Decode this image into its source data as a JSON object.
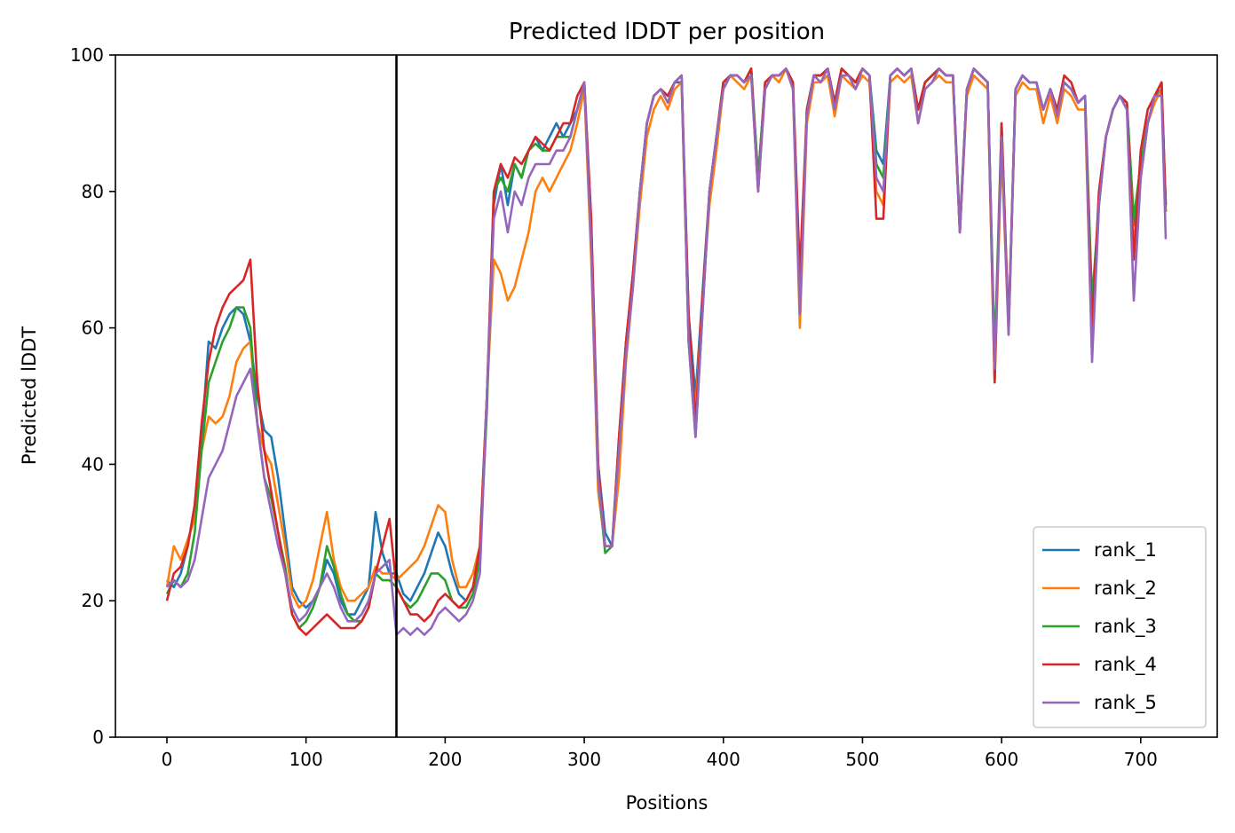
{
  "chart_data": {
    "type": "line",
    "title": "Predicted lDDT per position",
    "xlabel": "Positions",
    "ylabel": "Predicted lDDT",
    "xlim": [
      -37,
      755
    ],
    "ylim": [
      0,
      100
    ],
    "xticks": [
      0,
      100,
      200,
      300,
      400,
      500,
      600,
      700
    ],
    "yticks": [
      0,
      20,
      40,
      60,
      80,
      100
    ],
    "grid": false,
    "legend_position": "lower right",
    "vline_x": 165,
    "colors": [
      "#1f77b4",
      "#ff7f0e",
      "#2ca02c",
      "#d62728",
      "#9467bd"
    ],
    "x": [
      0,
      5,
      10,
      15,
      20,
      25,
      30,
      35,
      40,
      45,
      50,
      55,
      60,
      65,
      70,
      75,
      80,
      85,
      90,
      95,
      100,
      105,
      110,
      115,
      120,
      125,
      130,
      135,
      140,
      145,
      150,
      155,
      160,
      165,
      170,
      175,
      180,
      185,
      190,
      195,
      200,
      205,
      210,
      215,
      220,
      225,
      230,
      235,
      240,
      245,
      250,
      255,
      260,
      265,
      270,
      275,
      280,
      285,
      290,
      295,
      300,
      305,
      310,
      315,
      320,
      325,
      330,
      335,
      340,
      345,
      350,
      355,
      360,
      365,
      370,
      375,
      380,
      385,
      390,
      395,
      400,
      405,
      410,
      415,
      420,
      425,
      430,
      435,
      440,
      445,
      450,
      455,
      460,
      465,
      470,
      475,
      480,
      485,
      490,
      495,
      500,
      505,
      510,
      515,
      520,
      525,
      530,
      535,
      540,
      545,
      550,
      555,
      560,
      565,
      570,
      575,
      580,
      585,
      590,
      595,
      600,
      605,
      610,
      615,
      620,
      625,
      630,
      635,
      640,
      645,
      650,
      655,
      660,
      665,
      670,
      675,
      680,
      685,
      690,
      695,
      700,
      705,
      710,
      715,
      718
    ],
    "series": [
      {
        "name": "rank_1",
        "values": [
          23,
          22,
          24,
          28,
          34,
          44,
          58,
          57,
          60,
          62,
          63,
          62,
          58,
          50,
          45,
          44,
          38,
          30,
          22,
          20,
          19,
          20,
          22,
          26,
          24,
          20,
          18,
          18,
          20,
          22,
          33,
          27,
          24,
          24,
          21,
          20,
          22,
          24,
          27,
          30,
          28,
          24,
          21,
          20,
          22,
          26,
          50,
          78,
          84,
          78,
          84,
          82,
          86,
          88,
          86,
          88,
          90,
          88,
          90,
          92,
          96,
          75,
          40,
          30,
          28,
          42,
          56,
          66,
          80,
          90,
          94,
          95,
          94,
          96,
          96,
          62,
          50,
          65,
          80,
          88,
          95,
          97,
          97,
          96,
          98,
          82,
          96,
          97,
          97,
          98,
          96,
          62,
          92,
          97,
          97,
          98,
          93,
          98,
          97,
          96,
          98,
          97,
          86,
          84,
          97,
          98,
          97,
          98,
          92,
          96,
          97,
          98,
          97,
          97,
          74,
          95,
          98,
          97,
          96,
          55,
          88,
          60,
          95,
          97,
          96,
          96,
          92,
          95,
          92,
          96,
          95,
          93,
          94,
          58,
          80,
          88,
          92,
          94,
          93,
          75,
          82,
          90,
          94,
          95,
          78
        ]
      },
      {
        "name": "rank_2",
        "values": [
          22,
          28,
          26,
          29,
          32,
          42,
          47,
          46,
          47,
          50,
          55,
          57,
          58,
          46,
          42,
          40,
          34,
          28,
          21,
          19,
          20,
          23,
          28,
          33,
          26,
          22,
          20,
          20,
          21,
          22,
          25,
          24,
          24,
          23,
          24,
          25,
          26,
          28,
          31,
          34,
          33,
          26,
          22,
          22,
          24,
          28,
          50,
          70,
          68,
          64,
          66,
          70,
          74,
          80,
          82,
          80,
          82,
          84,
          86,
          90,
          95,
          70,
          36,
          28,
          28,
          38,
          55,
          66,
          78,
          88,
          92,
          94,
          92,
          95,
          96,
          58,
          48,
          64,
          78,
          86,
          95,
          97,
          96,
          95,
          97,
          80,
          95,
          97,
          96,
          98,
          95,
          60,
          90,
          96,
          96,
          97,
          91,
          97,
          96,
          95,
          97,
          96,
          80,
          78,
          96,
          97,
          96,
          97,
          90,
          95,
          96,
          97,
          96,
          96,
          74,
          94,
          97,
          96,
          95,
          52,
          86,
          59,
          94,
          96,
          95,
          95,
          90,
          94,
          90,
          95,
          94,
          92,
          92,
          56,
          78,
          88,
          92,
          94,
          93,
          72,
          82,
          90,
          93,
          95,
          77
        ]
      },
      {
        "name": "rank_3",
        "values": [
          21,
          23,
          22,
          24,
          30,
          42,
          52,
          55,
          58,
          60,
          63,
          63,
          60,
          46,
          38,
          35,
          30,
          25,
          18,
          16,
          17,
          19,
          22,
          28,
          25,
          21,
          18,
          17,
          17,
          19,
          24,
          23,
          23,
          22,
          20,
          19,
          20,
          22,
          24,
          24,
          23,
          20,
          19,
          19,
          21,
          26,
          48,
          80,
          82,
          80,
          84,
          82,
          86,
          87,
          86,
          86,
          88,
          88,
          88,
          92,
          96,
          74,
          38,
          27,
          28,
          44,
          58,
          68,
          80,
          90,
          94,
          95,
          94,
          96,
          97,
          58,
          44,
          62,
          80,
          88,
          96,
          97,
          97,
          96,
          98,
          82,
          96,
          97,
          97,
          98,
          96,
          64,
          92,
          97,
          97,
          98,
          93,
          98,
          97,
          96,
          98,
          97,
          84,
          82,
          97,
          98,
          97,
          98,
          92,
          96,
          97,
          98,
          97,
          97,
          75,
          95,
          98,
          97,
          96,
          56,
          90,
          60,
          95,
          97,
          96,
          96,
          92,
          95,
          92,
          96,
          95,
          93,
          94,
          64,
          78,
          88,
          92,
          94,
          93,
          76,
          84,
          90,
          94,
          96,
          77
        ]
      },
      {
        "name": "rank_4",
        "values": [
          20,
          24,
          25,
          28,
          34,
          46,
          55,
          60,
          63,
          65,
          66,
          67,
          70,
          52,
          42,
          36,
          30,
          24,
          18,
          16,
          15,
          16,
          17,
          18,
          17,
          16,
          16,
          16,
          17,
          19,
          24,
          28,
          32,
          22,
          20,
          18,
          18,
          17,
          18,
          20,
          21,
          20,
          19,
          20,
          22,
          28,
          50,
          80,
          84,
          82,
          85,
          84,
          86,
          88,
          87,
          86,
          88,
          90,
          90,
          94,
          96,
          76,
          40,
          28,
          28,
          44,
          58,
          68,
          80,
          90,
          94,
          95,
          94,
          96,
          97,
          62,
          46,
          64,
          80,
          88,
          96,
          97,
          97,
          96,
          98,
          80,
          96,
          97,
          97,
          98,
          96,
          68,
          92,
          97,
          97,
          98,
          93,
          98,
          97,
          96,
          98,
          97,
          76,
          76,
          97,
          98,
          97,
          98,
          92,
          96,
          97,
          98,
          97,
          97,
          74,
          95,
          98,
          97,
          96,
          52,
          90,
          60,
          95,
          97,
          96,
          96,
          92,
          95,
          92,
          97,
          96,
          93,
          94,
          60,
          80,
          88,
          92,
          94,
          93,
          70,
          86,
          92,
          94,
          96,
          78
        ]
      },
      {
        "name": "rank_5",
        "values": [
          22,
          23,
          22,
          23,
          26,
          32,
          38,
          40,
          42,
          46,
          50,
          52,
          54,
          46,
          38,
          33,
          28,
          24,
          19,
          17,
          18,
          20,
          22,
          24,
          22,
          19,
          17,
          17,
          18,
          20,
          24,
          25,
          26,
          15,
          16,
          15,
          16,
          15,
          16,
          18,
          19,
          18,
          17,
          18,
          20,
          24,
          50,
          76,
          80,
          74,
          80,
          78,
          82,
          84,
          84,
          84,
          86,
          86,
          88,
          92,
          96,
          72,
          38,
          28,
          28,
          42,
          56,
          66,
          80,
          90,
          94,
          95,
          93,
          96,
          97,
          58,
          44,
          62,
          80,
          88,
          95,
          97,
          97,
          96,
          97,
          80,
          95,
          97,
          97,
          98,
          95,
          62,
          91,
          97,
          96,
          98,
          92,
          97,
          97,
          95,
          98,
          97,
          82,
          80,
          97,
          98,
          97,
          98,
          90,
          95,
          96,
          98,
          97,
          97,
          74,
          95,
          98,
          97,
          96,
          54,
          88,
          59,
          95,
          97,
          96,
          96,
          92,
          95,
          91,
          96,
          95,
          93,
          94,
          55,
          78,
          88,
          92,
          94,
          92,
          64,
          82,
          90,
          94,
          94,
          73
        ]
      }
    ]
  }
}
